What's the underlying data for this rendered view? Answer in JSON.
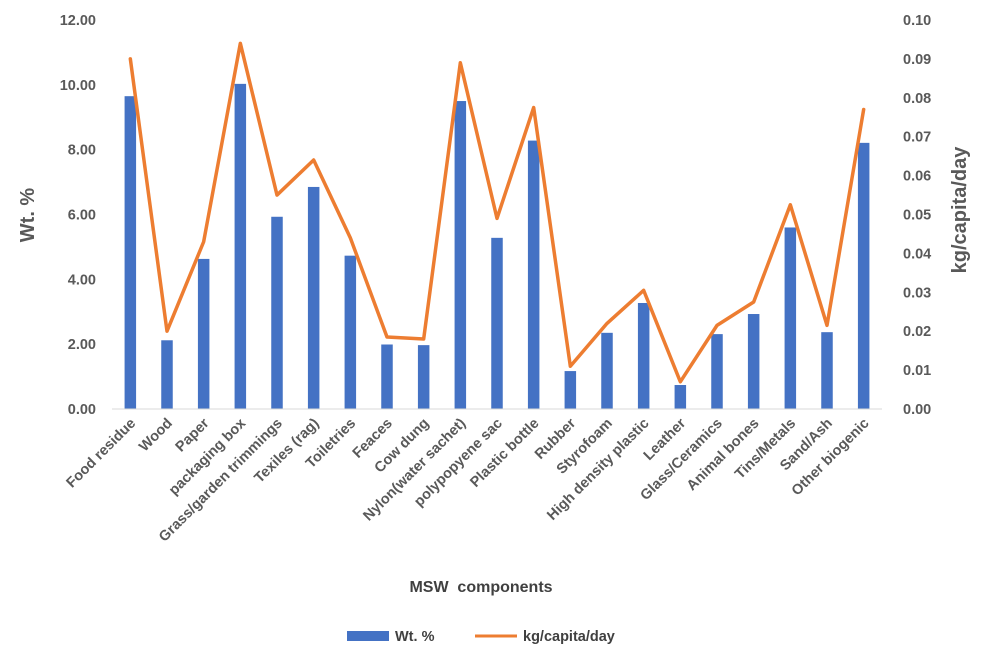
{
  "chart_data": {
    "type": "bar",
    "categories": [
      "Food residue",
      "Wood",
      "Paper",
      "packaging box",
      "Grass/garden trimmings",
      "Texiles (rag)",
      "Toiletries",
      "Feaces",
      "Cow dung",
      "Nylon(water sachet)",
      "polypopyene sac",
      "Plastic bottle",
      "Rubber",
      "Styrofoam",
      "High density plastic",
      "Leather",
      "Glass/Ceramics",
      "Animal bones",
      "Tins/Metals",
      "Sand/Ash",
      "Other biogenic"
    ],
    "series": [
      {
        "name": "Wt. %",
        "type": "bar",
        "axis": "left",
        "color": "#4472C4",
        "values": [
          9.65,
          2.12,
          4.63,
          10.03,
          5.93,
          6.85,
          4.73,
          1.99,
          1.97,
          9.5,
          5.28,
          8.28,
          1.17,
          2.35,
          3.27,
          0.74,
          2.31,
          2.93,
          5.6,
          2.37,
          8.21
        ]
      },
      {
        "name": "kg/capita/day",
        "type": "line",
        "axis": "right",
        "color": "#ED7D31",
        "values": [
          0.09,
          0.02,
          0.043,
          0.094,
          0.055,
          0.064,
          0.044,
          0.0185,
          0.018,
          0.089,
          0.049,
          0.0775,
          0.011,
          0.022,
          0.0305,
          0.007,
          0.0215,
          0.0275,
          0.0525,
          0.0215,
          0.077
        ]
      }
    ],
    "xlabel": "MSW  components",
    "ylabel": "Wt. %",
    "y2label": "kg/capita/day",
    "ylim": [
      0,
      12
    ],
    "y2lim": [
      0,
      0.1
    ],
    "yticks": [
      "0.00",
      "2.00",
      "4.00",
      "6.00",
      "8.00",
      "10.00",
      "12.00"
    ],
    "y2ticks": [
      "0.00",
      "0.01",
      "0.02",
      "0.03",
      "0.04",
      "0.05",
      "0.06",
      "0.07",
      "0.08",
      "0.09",
      "0.10"
    ],
    "grid": false,
    "legend": "bottom"
  }
}
